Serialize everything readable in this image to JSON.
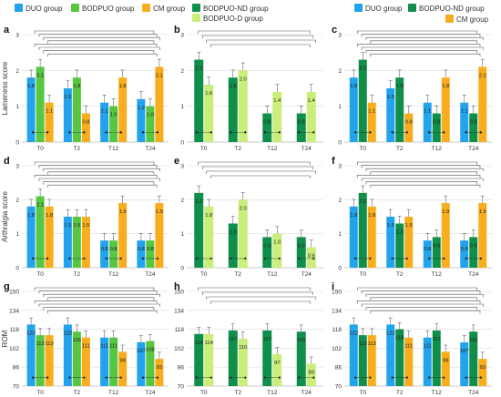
{
  "colors": {
    "DUO": "#23a3ec",
    "BODPUO": "#57c641",
    "CM": "#f7ad1e",
    "ND": "#0f8f4a",
    "D": "#c9ee7a",
    "grid": "#dcdcdc",
    "axis": "#9a9a9a",
    "bracket": "#555555",
    "text": "#333333"
  },
  "legends": [
    {
      "items": [
        {
          "label": "DUO group",
          "color": "#23a3ec"
        },
        {
          "label": "BODPUO group",
          "color": "#57c641"
        },
        {
          "label": "CM group",
          "color": "#f7ad1e"
        }
      ]
    },
    {
      "items": [
        {
          "label": "BODPUO-ND group",
          "color": "#0f8f4a"
        },
        {
          "label": "BODPUO-D group",
          "color": "#c9ee7a"
        }
      ]
    },
    {
      "items": [
        {
          "label": "DUO group",
          "color": "#23a3ec"
        },
        {
          "label": "BODPUO-ND group",
          "color": "#0f8f4a"
        },
        {
          "label": "CM group",
          "color": "#f7ad1e"
        }
      ]
    }
  ],
  "chart_data": [
    {
      "letter": "a",
      "type": "bar",
      "ylabel": "Lameness score",
      "ylim": [
        0,
        3
      ],
      "yticks": [
        0,
        1,
        2,
        3
      ],
      "categories": [
        "T0",
        "T2",
        "T12",
        "T24"
      ],
      "series": [
        {
          "name": "DUO group",
          "color": "#23a3ec",
          "values": [
            1.8,
            1.5,
            1.1,
            1.2
          ]
        },
        {
          "name": "BODPUO group",
          "color": "#57c641",
          "values": [
            2.1,
            1.8,
            1.0,
            1.0
          ]
        },
        {
          "name": "CM group",
          "color": "#f7ad1e",
          "values": [
            1.1,
            0.8,
            1.8,
            2.1
          ]
        }
      ],
      "labels": [
        [
          "1.8",
          "1.5",
          "1.1",
          "1.2"
        ],
        [
          "2.1",
          "1.8",
          "1.0",
          "1.0"
        ],
        [
          "1.1",
          "0.8",
          "1.8",
          "2.1"
        ]
      ],
      "brackets": 8
    },
    {
      "letter": "b",
      "type": "bar",
      "ylabel": "",
      "ylim": [
        0,
        3
      ],
      "yticks": [
        0,
        1,
        2,
        3
      ],
      "categories": [
        "T0",
        "T2",
        "T12",
        "T24"
      ],
      "series": [
        {
          "name": "BODPUO-ND group",
          "color": "#0f8f4a",
          "values": [
            2.3,
            1.8,
            0.8,
            0.8
          ]
        },
        {
          "name": "BODPUO-D group",
          "color": "#c9ee7a",
          "values": [
            1.6,
            2.0,
            1.4,
            1.4
          ]
        }
      ],
      "labels": [
        [
          "2.3",
          "1.8",
          "0.8",
          "0.8"
        ],
        [
          "1.6",
          "2.0",
          "1.4",
          "1.4"
        ]
      ],
      "brackets": 4
    },
    {
      "letter": "c",
      "type": "bar",
      "ylabel": "",
      "ylim": [
        0,
        3
      ],
      "yticks": [
        0,
        1,
        2,
        3
      ],
      "categories": [
        "T0",
        "T2",
        "T12",
        "T24"
      ],
      "series": [
        {
          "name": "DUO group",
          "color": "#23a3ec",
          "values": [
            1.8,
            1.5,
            1.1,
            1.1
          ]
        },
        {
          "name": "BODPUO-ND group",
          "color": "#0f8f4a",
          "values": [
            2.3,
            1.8,
            0.8,
            0.8
          ]
        },
        {
          "name": "CM group",
          "color": "#f7ad1e",
          "values": [
            1.1,
            0.8,
            1.8,
            2.1
          ]
        }
      ],
      "labels": [
        [
          "1.8",
          "1.5",
          "1.1",
          "1.1"
        ],
        [
          "2.3",
          "1.8",
          "0.8",
          "0.8"
        ],
        [
          "1.1",
          "0.8",
          "1.8",
          "2.1"
        ]
      ],
      "brackets": 8
    },
    {
      "letter": "d",
      "type": "bar",
      "ylabel": "Arthralgia score",
      "ylim": [
        0,
        3
      ],
      "yticks": [
        0,
        1,
        2,
        3
      ],
      "categories": [
        "T0",
        "T2",
        "T12",
        "T24"
      ],
      "series": [
        {
          "name": "DUO group",
          "color": "#23a3ec",
          "values": [
            1.8,
            1.5,
            0.8,
            0.8
          ]
        },
        {
          "name": "BODPUO group",
          "color": "#57c641",
          "values": [
            2.1,
            1.5,
            0.8,
            0.8
          ]
        },
        {
          "name": "CM group",
          "color": "#f7ad1e",
          "values": [
            1.8,
            1.5,
            1.9,
            1.9
          ]
        }
      ],
      "labels": [
        [
          "1.8",
          "1.5",
          "0.8",
          "0.8"
        ],
        [
          "2.1",
          "1.5",
          "0.8",
          "0.8"
        ],
        [
          "1.8",
          "1.5",
          "1.9",
          "1.9"
        ]
      ],
      "brackets": 8
    },
    {
      "letter": "e",
      "type": "bar",
      "ylabel": "",
      "ylim": [
        0,
        3
      ],
      "yticks": [
        0,
        1,
        2,
        3
      ],
      "categories": [
        "T0",
        "T2",
        "T12",
        "T24"
      ],
      "series": [
        {
          "name": "BODPUO-ND group",
          "color": "#0f8f4a",
          "values": [
            2.2,
            1.3,
            0.9,
            0.9
          ]
        },
        {
          "name": "BODPUO-D group",
          "color": "#c9ee7a",
          "values": [
            1.8,
            2.0,
            1.0,
            0.6
          ]
        }
      ],
      "labels": [
        [
          "2.2",
          "1.3",
          "0.9",
          "0.9"
        ],
        [
          "1.8",
          "2.0",
          "1.0",
          "0.6"
        ]
      ],
      "brackets": 4
    },
    {
      "letter": "f",
      "type": "bar",
      "ylabel": "",
      "ylim": [
        0,
        3
      ],
      "yticks": [
        0,
        1,
        2,
        3
      ],
      "categories": [
        "T0",
        "T2",
        "T12",
        "T24"
      ],
      "series": [
        {
          "name": "DUO group",
          "color": "#23a3ec",
          "values": [
            1.8,
            1.5,
            0.8,
            0.8
          ]
        },
        {
          "name": "BODPUO-ND group",
          "color": "#0f8f4a",
          "values": [
            2.2,
            1.3,
            0.9,
            0.9
          ]
        },
        {
          "name": "CM group",
          "color": "#f7ad1e",
          "values": [
            1.8,
            1.5,
            1.9,
            1.9
          ]
        }
      ],
      "labels": [
        [
          "1.8",
          "1.5",
          "0.8",
          "0.8"
        ],
        [
          "2.2",
          "1.3",
          "0.9",
          "0.9"
        ],
        [
          "1.8",
          "1.5",
          "1.9",
          "1.9"
        ]
      ],
      "brackets": 8
    },
    {
      "letter": "g",
      "type": "bar",
      "ylabel": "ROM",
      "ylim": [
        70,
        150
      ],
      "yticks": [
        70,
        86,
        102,
        118,
        134,
        150
      ],
      "categories": [
        "T0",
        "T2",
        "T12",
        "T24"
      ],
      "series": [
        {
          "name": "DUO group",
          "color": "#23a3ec",
          "values": [
            122,
            122,
            111,
            107
          ]
        },
        {
          "name": "BODPUO group",
          "color": "#57c641",
          "values": [
            113,
            116,
            111,
            108
          ]
        },
        {
          "name": "CM group",
          "color": "#f7ad1e",
          "values": [
            113,
            111,
            99,
            93
          ]
        }
      ],
      "labels": [
        [
          "122",
          "122",
          "111",
          "107"
        ],
        [
          "113",
          "116",
          "111",
          "108"
        ],
        [
          "113",
          "111",
          "99",
          "93"
        ]
      ],
      "brackets": 8
    },
    {
      "letter": "h",
      "type": "bar",
      "ylabel": "",
      "ylim": [
        70,
        150
      ],
      "yticks": [
        70,
        86,
        102,
        118,
        134,
        150
      ],
      "categories": [
        "T0",
        "T2",
        "T12",
        "T24"
      ],
      "series": [
        {
          "name": "BODPUO-ND group",
          "color": "#0f8f4a",
          "values": [
            114,
            117,
            117,
            116
          ]
        },
        {
          "name": "BODPUO-D group",
          "color": "#c9ee7a",
          "values": [
            114,
            110,
            97,
            89
          ]
        }
      ],
      "labels": [
        [
          "114",
          "117",
          "117",
          "116"
        ],
        [
          "114",
          "110",
          "97",
          "89"
        ]
      ],
      "brackets": 4
    },
    {
      "letter": "i",
      "type": "bar",
      "ylabel": "",
      "ylim": [
        70,
        150
      ],
      "yticks": [
        70,
        86,
        102,
        118,
        134,
        150
      ],
      "categories": [
        "T0",
        "T2",
        "T12",
        "T24"
      ],
      "series": [
        {
          "name": "DUO group",
          "color": "#23a3ec",
          "values": [
            122,
            122,
            111,
            107
          ]
        },
        {
          "name": "BODPUO-ND group",
          "color": "#0f8f4a",
          "values": [
            113,
            118,
            117,
            116
          ]
        },
        {
          "name": "CM group",
          "color": "#f7ad1e",
          "values": [
            113,
            111,
            99,
            93
          ]
        }
      ],
      "labels": [
        [
          "122",
          "122",
          "111",
          "107"
        ],
        [
          "113",
          "118",
          "117",
          "116"
        ],
        [
          "113",
          "111",
          "99",
          "93"
        ]
      ],
      "brackets": 8
    }
  ]
}
